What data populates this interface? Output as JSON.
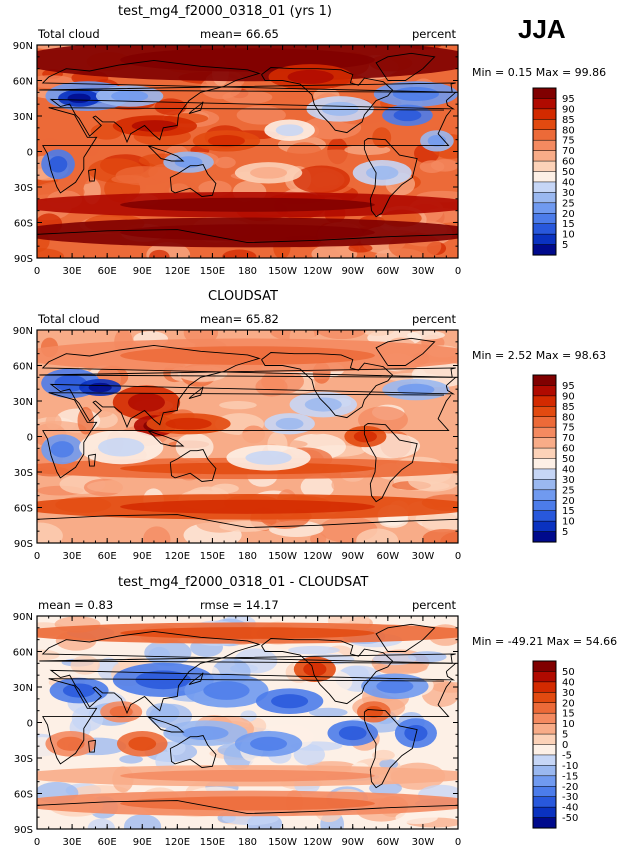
{
  "season": "JJA",
  "lat_labels": [
    "90N",
    "60N",
    "30N",
    "0",
    "30S",
    "60S",
    "90S"
  ],
  "lon_labels": [
    "0",
    "30E",
    "60E",
    "90E",
    "120E",
    "150E",
    "180",
    "150W",
    "120W",
    "90W",
    "60W",
    "30W",
    "0"
  ],
  "panels": [
    {
      "title": "test_mg4_f2000_0318_01 (yrs 1)",
      "left_label": "Total cloud",
      "mid_label": "mean=  66.65",
      "units": "percent",
      "minmax": "Min =    0.15  Max =   99.86",
      "legend": [
        "95",
        "90",
        "85",
        "80",
        "75",
        "70",
        "60",
        "50",
        "40",
        "30",
        "25",
        "20",
        "15",
        "10",
        "5"
      ],
      "colors": [
        "#800000",
        "#b00a00",
        "#d32a00",
        "#e24a10",
        "#ec6a38",
        "#f48a60",
        "#f8ac88",
        "#fcd2b8",
        "#fdf0e6",
        "#c6d6f6",
        "#9ab8f0",
        "#709af0",
        "#4c7cea",
        "#2858dc",
        "#0a32c0",
        "#000a8c"
      ]
    },
    {
      "title": "CLOUDSAT",
      "left_label": "Total cloud",
      "mid_label": "mean=  65.82",
      "units": "percent",
      "minmax": "Min =    2.52  Max =   98.63",
      "legend": [
        "95",
        "90",
        "85",
        "80",
        "75",
        "70",
        "60",
        "50",
        "40",
        "30",
        "25",
        "20",
        "15",
        "10",
        "5"
      ],
      "colors": [
        "#800000",
        "#b00a00",
        "#d32a00",
        "#e24a10",
        "#ec6a38",
        "#f48a60",
        "#f8ac88",
        "#fcd2b8",
        "#fdf0e6",
        "#c6d6f6",
        "#9ab8f0",
        "#709af0",
        "#4c7cea",
        "#2858dc",
        "#0a32c0",
        "#000a8c"
      ]
    },
    {
      "title": "test_mg4_f2000_0318_01 - CLOUDSAT",
      "left_label": "mean =    0.83",
      "mid_label": "rmse =   14.17",
      "units": "percent",
      "minmax": "Min = -49.21  Max =   54.66",
      "legend": [
        "50",
        "40",
        "30",
        "20",
        "15",
        "10",
        "5",
        "0",
        "-5",
        "-10",
        "-15",
        "-20",
        "-30",
        "-40",
        "-50"
      ],
      "colors": [
        "#800000",
        "#b00a00",
        "#d32a00",
        "#e24a10",
        "#ec6a38",
        "#f48a60",
        "#f8ac88",
        "#fcd2b8",
        "#fdf0e6",
        "#c6d6f6",
        "#9ab8f0",
        "#709af0",
        "#4c7cea",
        "#2858dc",
        "#0a32c0",
        "#000a8c"
      ]
    }
  ]
}
